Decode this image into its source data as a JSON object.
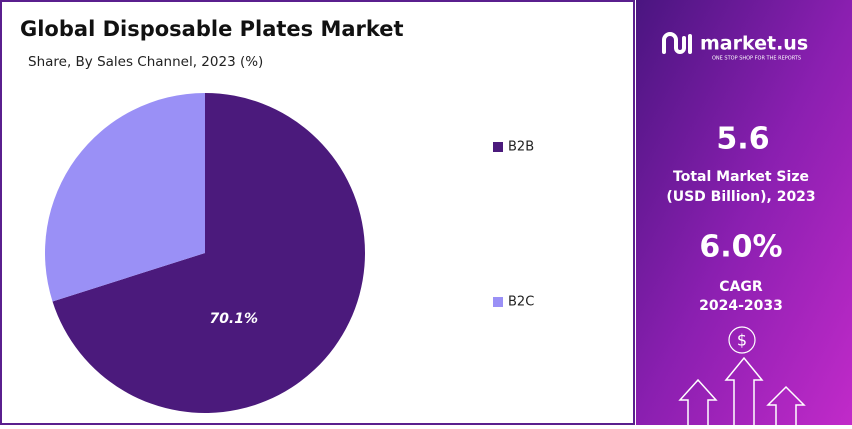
{
  "chart_data": {
    "type": "pie",
    "title": "Global Disposable Plates Market",
    "subtitle": "Share, By Sales Channel, 2023 (%)",
    "categories": [
      "B2B",
      "B2C"
    ],
    "values": [
      70.1,
      29.9
    ],
    "value_labels": [
      "70.1%",
      null
    ],
    "colors": [
      "#4b1a7c",
      "#9a90f6"
    ],
    "legend": "right"
  },
  "side_panel": {
    "brand": "market.us",
    "tagline": "ONE STOP SHOP FOR THE REPORTS",
    "market_size": "5.6",
    "market_size_label_1": "Total Market Size",
    "market_size_label_2": "(USD Billion), 2023",
    "cagr": "6.0%",
    "cagr_label": "CAGR",
    "cagr_period": "2024-2033",
    "currency": "$"
  }
}
